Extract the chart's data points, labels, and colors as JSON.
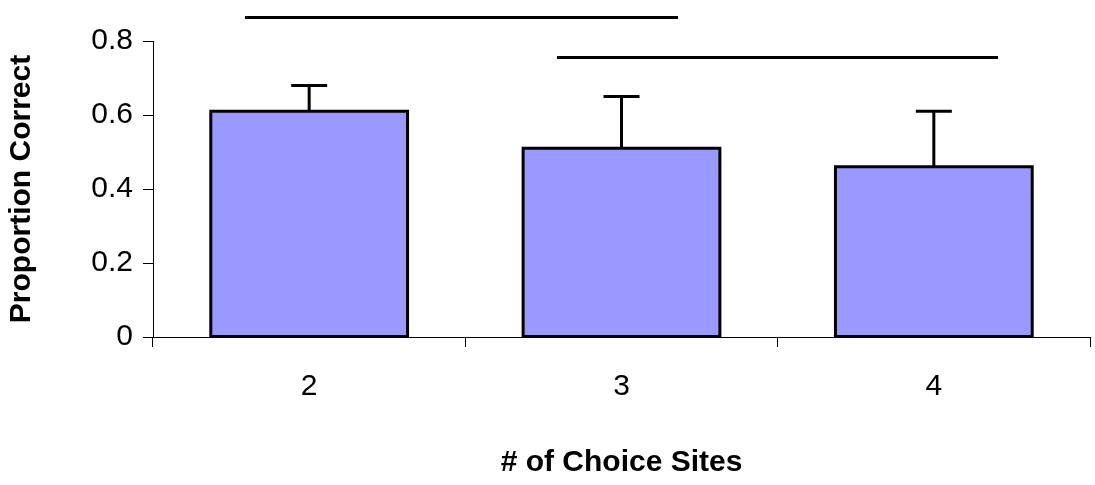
{
  "chart_data": {
    "type": "bar",
    "xlabel": "# of Choice Sites",
    "ylabel": "Proportion Correct",
    "categories": [
      "2",
      "3",
      "4"
    ],
    "values": [
      0.61,
      0.51,
      0.46
    ],
    "errors": [
      [
        0.61,
        0.68
      ],
      [
        0.51,
        0.65
      ],
      [
        0.46,
        0.61
      ]
    ],
    "color": "#9999ff",
    "ylim": [
      0,
      0.8
    ],
    "yticks": [
      0,
      0.2,
      0.4,
      0.6,
      0.8
    ],
    "grid": false,
    "legend": false
  }
}
